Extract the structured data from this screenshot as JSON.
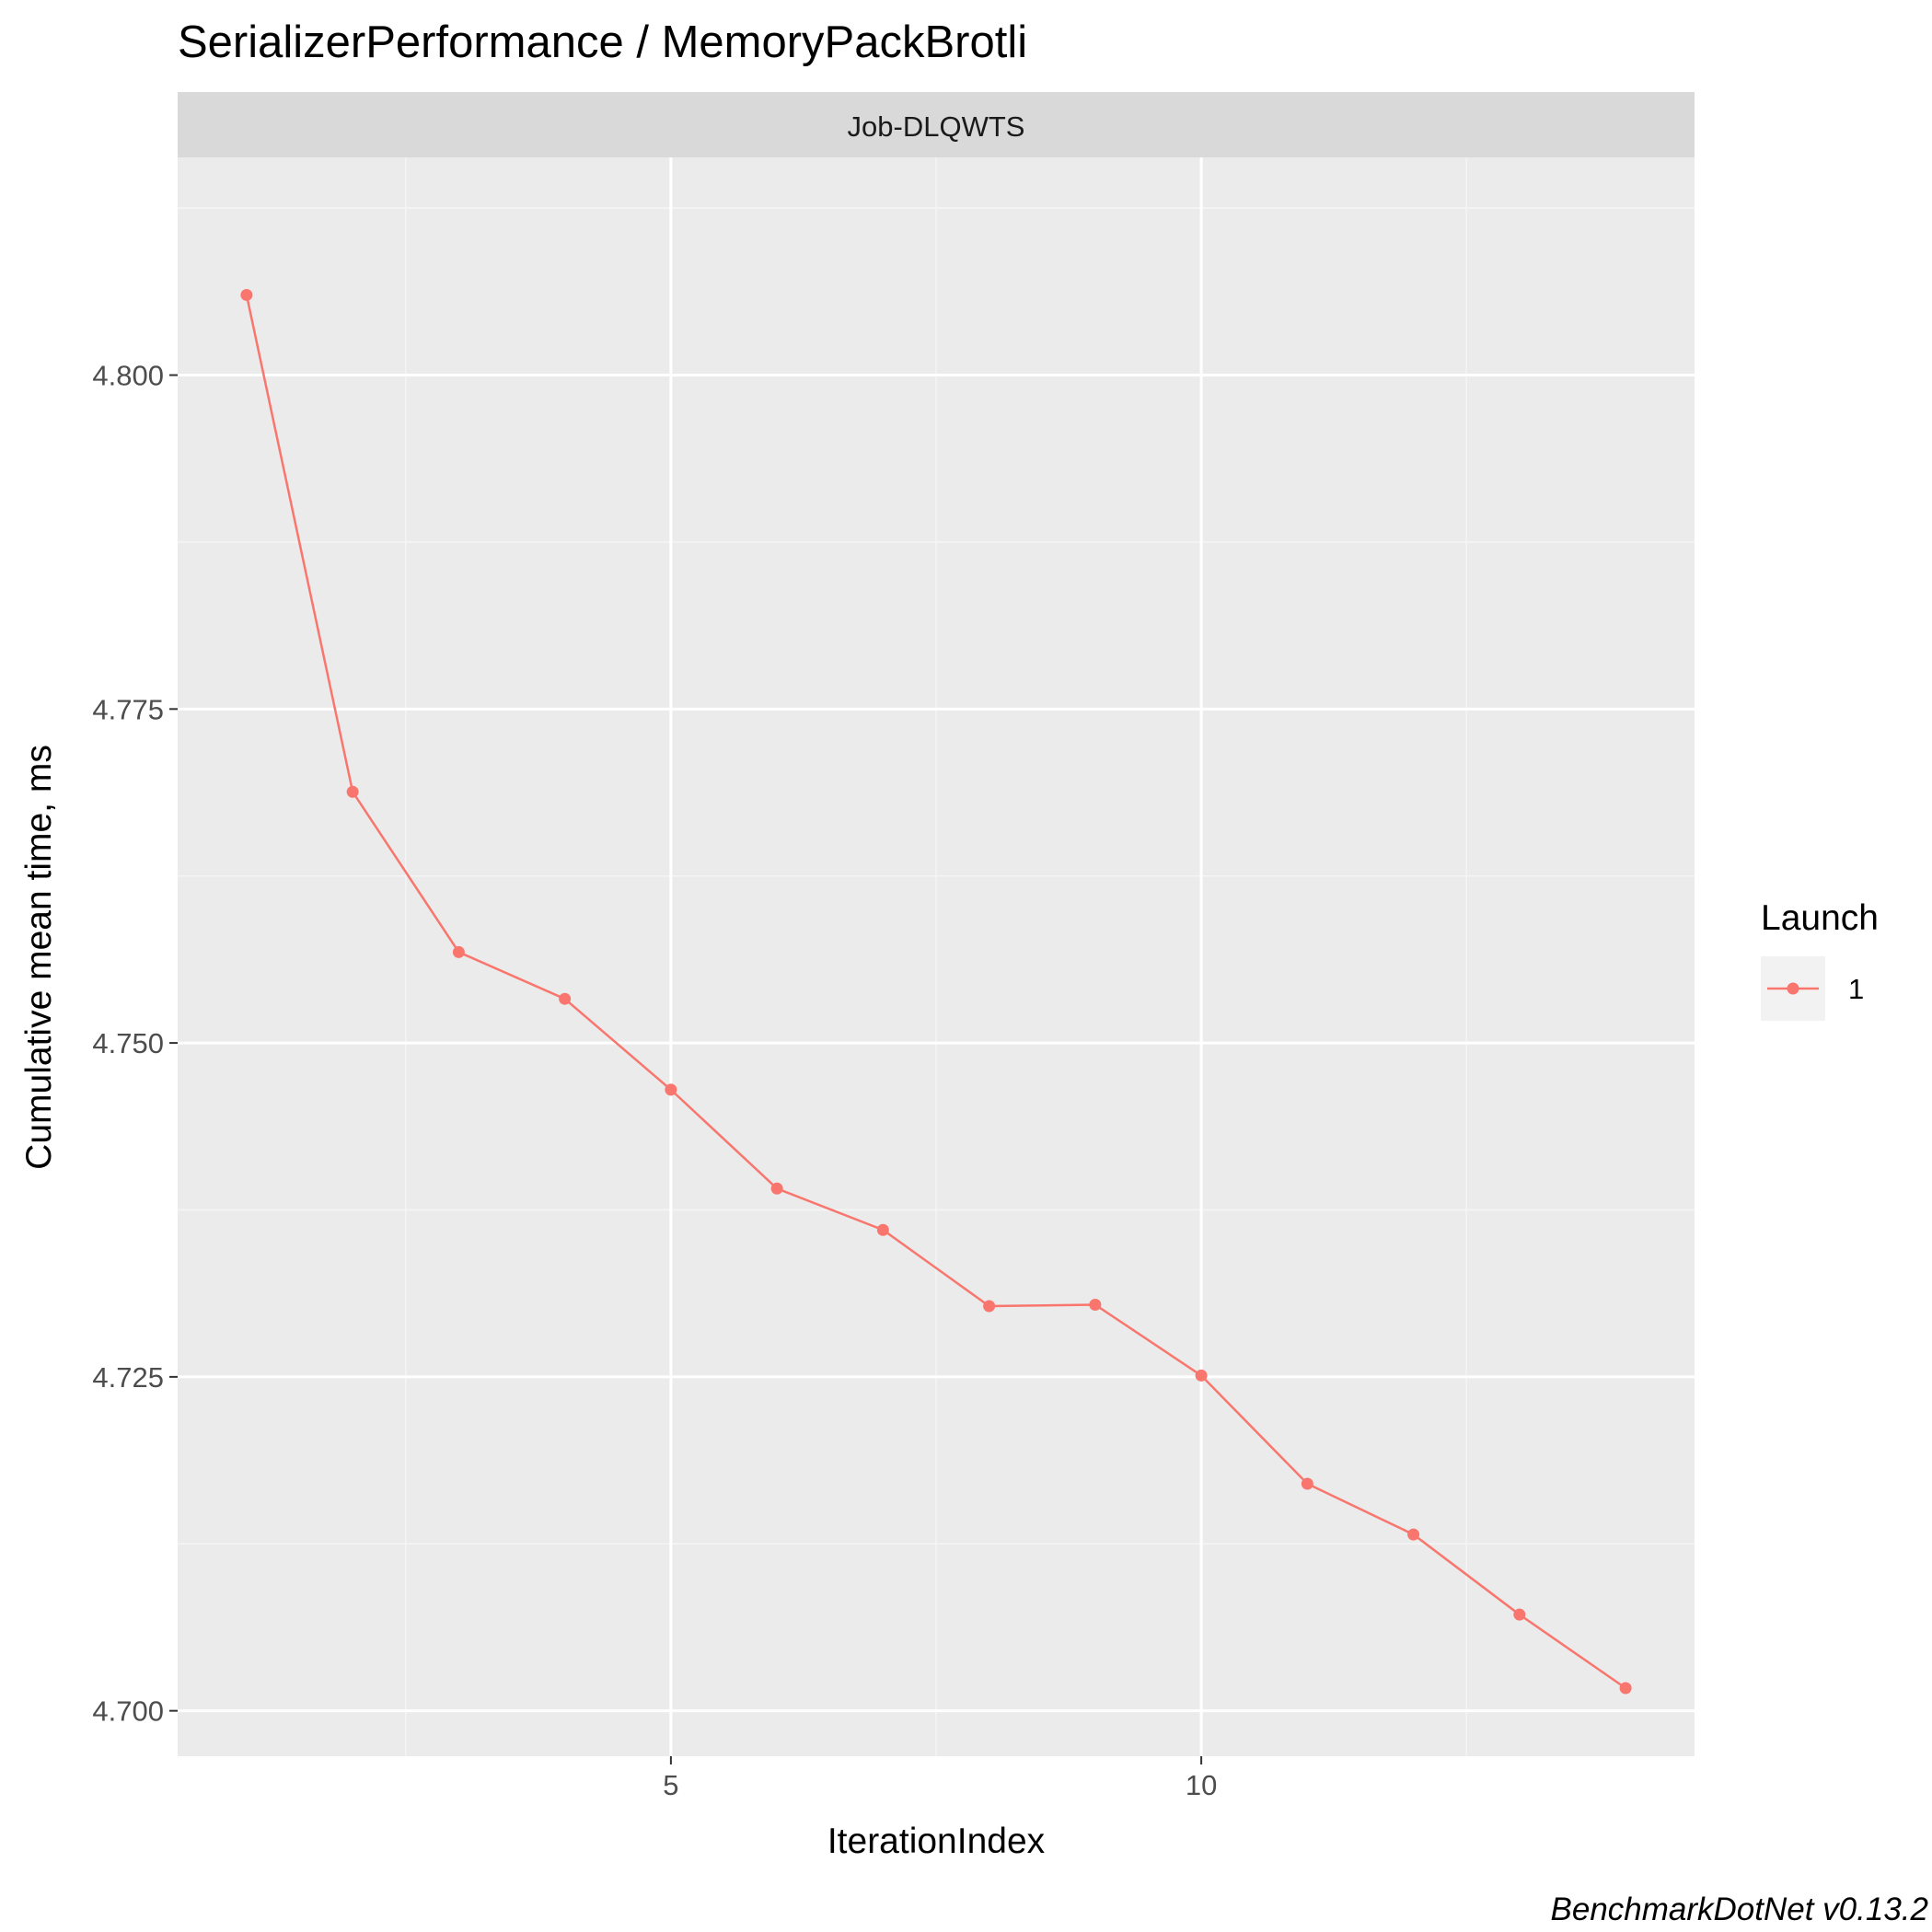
{
  "chart_data": {
    "type": "line",
    "title": "SerializerPerformance / MemoryPackBrotli",
    "facet_label": "Job-DLQWTS",
    "xlabel": "IterationIndex",
    "ylabel": "Cumulative mean time, ms",
    "caption": "BenchmarkDotNet v0.13.2",
    "xlim": [
      0.35,
      14.65
    ],
    "ylim": [
      4.6966,
      4.8163
    ],
    "x_ticks": [
      5,
      10
    ],
    "x_tick_labels": [
      "5",
      "10"
    ],
    "y_ticks": [
      4.7,
      4.725,
      4.75,
      4.775,
      4.8
    ],
    "y_tick_labels": [
      "4.700",
      "4.725",
      "4.750",
      "4.775",
      "4.800"
    ],
    "grid": true,
    "legend": {
      "title": "Launch",
      "position": "right",
      "entries": [
        "1"
      ]
    },
    "series": [
      {
        "name": "1",
        "color": "#f8766d",
        "x": [
          1,
          2,
          3,
          4,
          5,
          6,
          7,
          8,
          9,
          10,
          11,
          12,
          13,
          14
        ],
        "y": [
          4.806,
          4.7688,
          4.7568,
          4.7533,
          4.7465,
          4.7391,
          4.736,
          4.7303,
          4.7304,
          4.7251,
          4.717,
          4.7132,
          4.7072,
          4.7017
        ]
      }
    ],
    "colors": {
      "panel_background": "#ebebeb",
      "strip_background": "#d9d9d9",
      "grid_major": "#ffffff",
      "grid_minor": "#f5f5f5",
      "tick_text": "#4d4d4d",
      "tick_mark": "#333333"
    }
  }
}
